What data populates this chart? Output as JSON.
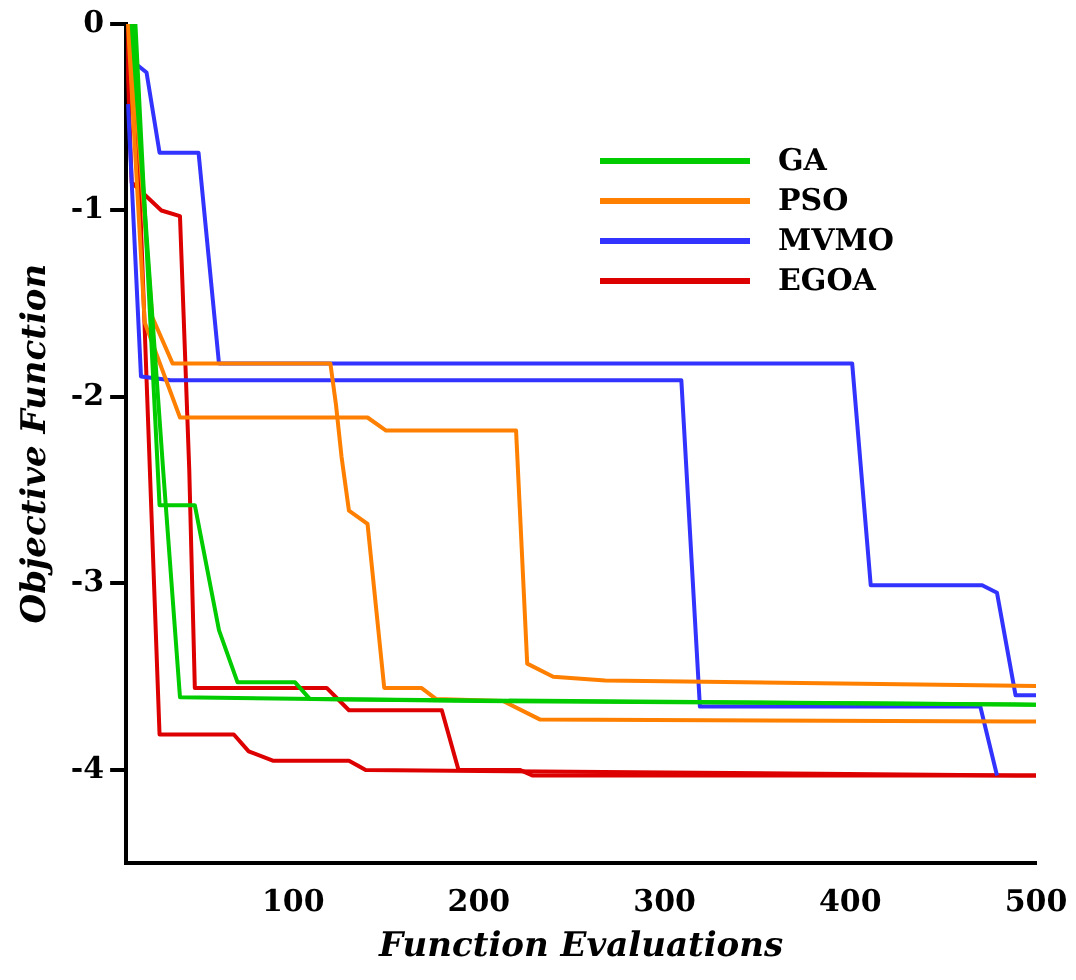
{
  "chart_data": {
    "type": "line",
    "xlabel": "Function Evaluations",
    "ylabel": "Objective Function",
    "xlim": [
      10,
      500
    ],
    "ylim": [
      -4.5,
      0
    ],
    "xticks": [
      100,
      200,
      300,
      400,
      500
    ],
    "yticks": [
      -4,
      -3,
      -2,
      -1,
      0
    ],
    "grid": false,
    "legend": "top right",
    "marker": "none",
    "line_style": "solid",
    "series": [
      {
        "name": "GA",
        "color": "#00cc00",
        "x": [
          15,
          28,
          47,
          60,
          70,
          101,
          109,
          500
        ],
        "values": [
          0,
          -2.58,
          -2.58,
          -3.25,
          -3.53,
          -3.53,
          -3.62,
          -3.65
        ]
      },
      {
        "color": "#00cc00",
        "x": [
          13,
          30,
          39,
          200,
          500
        ],
        "values": [
          0,
          -2.4,
          -3.61,
          -3.63,
          -3.65
        ]
      },
      {
        "name": "PSO",
        "color": "#ff8000",
        "x": [
          12,
          24,
          35,
          120,
          123,
          126,
          130,
          140,
          149,
          169,
          177,
          213,
          233,
          500
        ],
        "values": [
          0,
          -1.57,
          -1.82,
          -1.82,
          -2.04,
          -2.32,
          -2.61,
          -2.68,
          -3.56,
          -3.56,
          -3.62,
          -3.63,
          -3.73,
          -3.74
        ]
      },
      {
        "color": "#ff8000",
        "x": [
          11,
          20,
          39,
          140,
          150,
          220,
          226,
          240,
          268,
          500
        ],
        "values": [
          0,
          -1.6,
          -2.11,
          -2.11,
          -2.18,
          -2.18,
          -3.43,
          -3.5,
          -3.52,
          -3.55
        ]
      },
      {
        "name": "MVMO",
        "color": "#3333ff",
        "x": [
          12,
          16,
          21,
          28,
          49,
          60,
          401,
          411,
          471,
          479,
          489,
          500
        ],
        "values": [
          0,
          -0.22,
          -0.26,
          -0.69,
          -0.69,
          -1.82,
          -1.82,
          -3.01,
          -3.01,
          -3.05,
          -3.6,
          -3.6
        ]
      },
      {
        "color": "#3333ff",
        "x": [
          11,
          18,
          34,
          309,
          319,
          470,
          479
        ],
        "values": [
          -0.43,
          -1.89,
          -1.91,
          -1.91,
          -3.66,
          -3.66,
          -4.03
        ]
      },
      {
        "name": "EGOA",
        "color": "#dd0000",
        "x": [
          10,
          13,
          29,
          39,
          44,
          47,
          118,
          130,
          180,
          189,
          222,
          229,
          500
        ],
        "values": [
          0,
          -0.85,
          -1.0,
          -1.03,
          -2.39,
          -3.56,
          -3.56,
          -3.68,
          -3.68,
          -4.0,
          -4.0,
          -4.03,
          -4.03
        ]
      },
      {
        "color": "#dd0000",
        "x": [
          14,
          28,
          68,
          76,
          89,
          130,
          139,
          500
        ],
        "values": [
          0,
          -3.81,
          -3.81,
          -3.9,
          -3.95,
          -3.95,
          -4.0,
          -4.03
        ]
      }
    ]
  }
}
